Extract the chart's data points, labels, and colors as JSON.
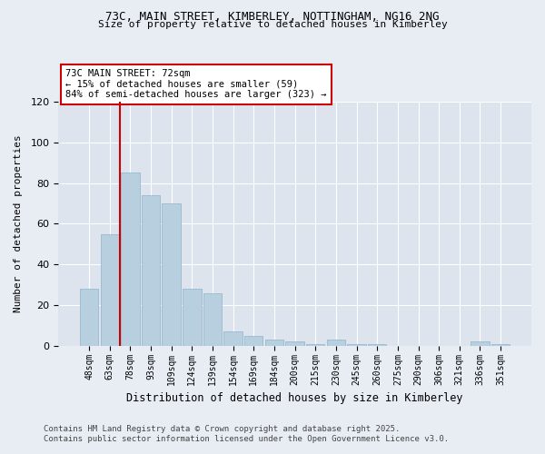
{
  "title_line1": "73C, MAIN STREET, KIMBERLEY, NOTTINGHAM, NG16 2NG",
  "title_line2": "Size of property relative to detached houses in Kimberley",
  "xlabel": "Distribution of detached houses by size in Kimberley",
  "ylabel": "Number of detached properties",
  "categories": [
    "48sqm",
    "63sqm",
    "78sqm",
    "93sqm",
    "109sqm",
    "124sqm",
    "139sqm",
    "154sqm",
    "169sqm",
    "184sqm",
    "200sqm",
    "215sqm",
    "230sqm",
    "245sqm",
    "260sqm",
    "275sqm",
    "290sqm",
    "306sqm",
    "321sqm",
    "336sqm",
    "351sqm"
  ],
  "values": [
    28,
    55,
    85,
    74,
    70,
    28,
    26,
    7,
    5,
    3,
    2,
    1,
    3,
    1,
    1,
    0,
    0,
    0,
    0,
    2,
    1
  ],
  "bar_color": "#b8cfe0",
  "bar_edge_color": "#8fb3cc",
  "vline_x": 1.5,
  "vline_color": "#cc0000",
  "annotation_title": "73C MAIN STREET: 72sqm",
  "annotation_line1": "← 15% of detached houses are smaller (59)",
  "annotation_line2": "84% of semi-detached houses are larger (323) →",
  "annotation_box_color": "#cc0000",
  "ylim": [
    0,
    120
  ],
  "yticks": [
    0,
    20,
    40,
    60,
    80,
    100,
    120
  ],
  "footer_line1": "Contains HM Land Registry data © Crown copyright and database right 2025.",
  "footer_line2": "Contains public sector information licensed under the Open Government Licence v3.0.",
  "bg_color": "#e8edf4",
  "plot_bg_color": "#dde4ee"
}
